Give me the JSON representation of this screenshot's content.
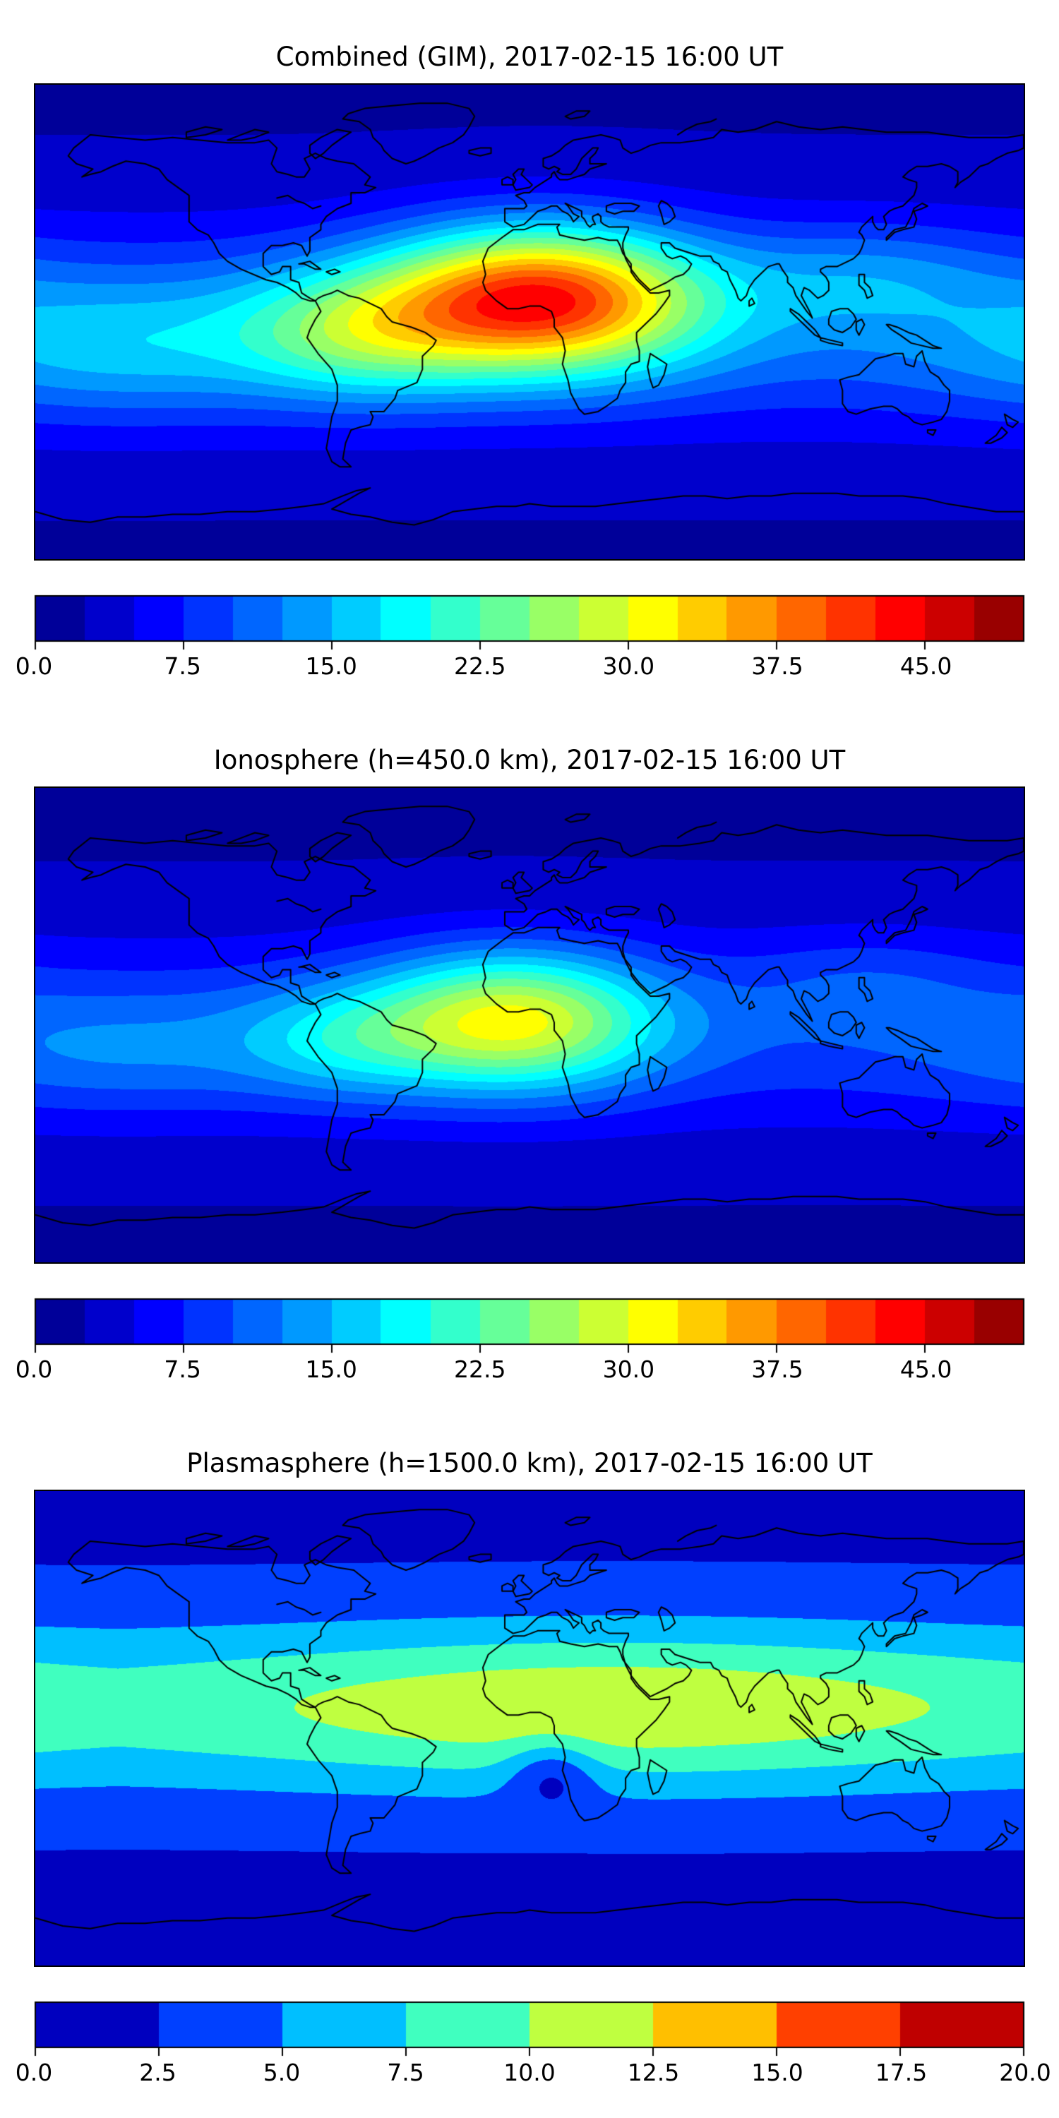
{
  "figure": {
    "background_color": "#ffffff",
    "text_color": "#000000",
    "colormap": "jet",
    "coastline_color": "#000000"
  },
  "chart_data": {
    "type": "heatmap",
    "subtype": "filled-contour global TEC maps (matplotlib contourf, jet colormap, equirectangular projection with coastlines)",
    "projection": "equirectangular",
    "lon_range": [
      -180,
      180
    ],
    "lat_range": [
      -90,
      90
    ],
    "date": "2017-02-15",
    "time_ut": "16:00",
    "panels": [
      {
        "id": "combined",
        "title": "Combined (GIM), 2017-02-15 16:00 UT",
        "colorbar": {
          "range": [
            0,
            50
          ],
          "segments": 20,
          "tick_values": [
            0,
            7.5,
            15,
            22.5,
            30,
            37.5,
            45
          ],
          "tick_labels": [
            "0.0",
            "7.5",
            "15.0",
            "22.5",
            "30.0",
            "37.5",
            "45.0"
          ]
        },
        "field": {
          "base": 2.2,
          "contour_step": 2.5,
          "color_vmax": 50,
          "peak": {
            "value": 44,
            "lon": 4,
            "lat": 9
          },
          "blobs": [
            {
              "amp": 9,
              "lon": 0,
              "lat": -2,
              "slon": 100000,
              "slat": 28
            },
            {
              "amp": 33,
              "lon": 4,
              "lat": 9,
              "slon": 40,
              "slat": 19
            },
            {
              "amp": 12,
              "lon": -62,
              "lat": -4,
              "slon": 32,
              "slat": 17
            },
            {
              "amp": 6,
              "lon": -150,
              "lat": -10,
              "slon": 45,
              "slat": 18
            },
            {
              "amp": 5,
              "lon": 122,
              "lat": 18,
              "slon": 35,
              "slat": 14
            }
          ]
        }
      },
      {
        "id": "ionosphere",
        "title": "Ionosphere  (h=450.0 km), 2017-02-15 16:00 UT",
        "colorbar": {
          "range": [
            0,
            50
          ],
          "segments": 20,
          "tick_values": [
            0,
            7.5,
            15,
            22.5,
            30,
            37.5,
            45
          ],
          "tick_labels": [
            "0.0",
            "7.5",
            "15.0",
            "22.5",
            "30.0",
            "37.5",
            "45.0"
          ]
        },
        "field": {
          "base": 2.2,
          "contour_step": 2.5,
          "color_vmax": 50,
          "peak": {
            "value": 31,
            "lon": -6,
            "lat": 2
          },
          "blobs": [
            {
              "amp": 7,
              "lon": 0,
              "lat": -3,
              "slon": 100000,
              "slat": 26
            },
            {
              "amp": 22,
              "lon": -6,
              "lat": 2,
              "slon": 36,
              "slat": 18
            },
            {
              "amp": 7,
              "lon": -68,
              "lat": -6,
              "slon": 28,
              "slat": 15
            },
            {
              "amp": 4,
              "lon": -150,
              "lat": -10,
              "slon": 45,
              "slat": 16
            },
            {
              "amp": 3,
              "lon": 122,
              "lat": 18,
              "slon": 32,
              "slat": 13
            }
          ]
        }
      },
      {
        "id": "plasmasphere",
        "title": "Plasmasphere (h=1500.0 km), 2017-02-15 16:00 UT",
        "colorbar": {
          "range": [
            0,
            20
          ],
          "segments": 8,
          "tick_values": [
            0,
            2.5,
            5,
            7.5,
            10,
            12.5,
            15,
            17.5,
            20
          ],
          "tick_labels": [
            "0.0",
            "2.5",
            "5.0",
            "7.5",
            "10.0",
            "12.5",
            "15.0",
            "17.5",
            "20.0"
          ]
        },
        "field": {
          "base": 2.0,
          "contour_step": 2.5,
          "color_vmax": 20,
          "peak": {
            "value": 12.5,
            "lon": 30,
            "lat": 8
          },
          "blobs": [
            {
              "amp": 6,
              "lon": 0,
              "lat": 8,
              "slon": 100000,
              "slat": 24
            },
            {
              "amp": 4.2,
              "lon": 30,
              "lat": 8,
              "slon": 95,
              "slat": 20
            },
            {
              "amp": -4.5,
              "lon": 8,
              "lat": -17,
              "slon": 11,
              "slat": 9
            }
          ]
        }
      }
    ]
  }
}
